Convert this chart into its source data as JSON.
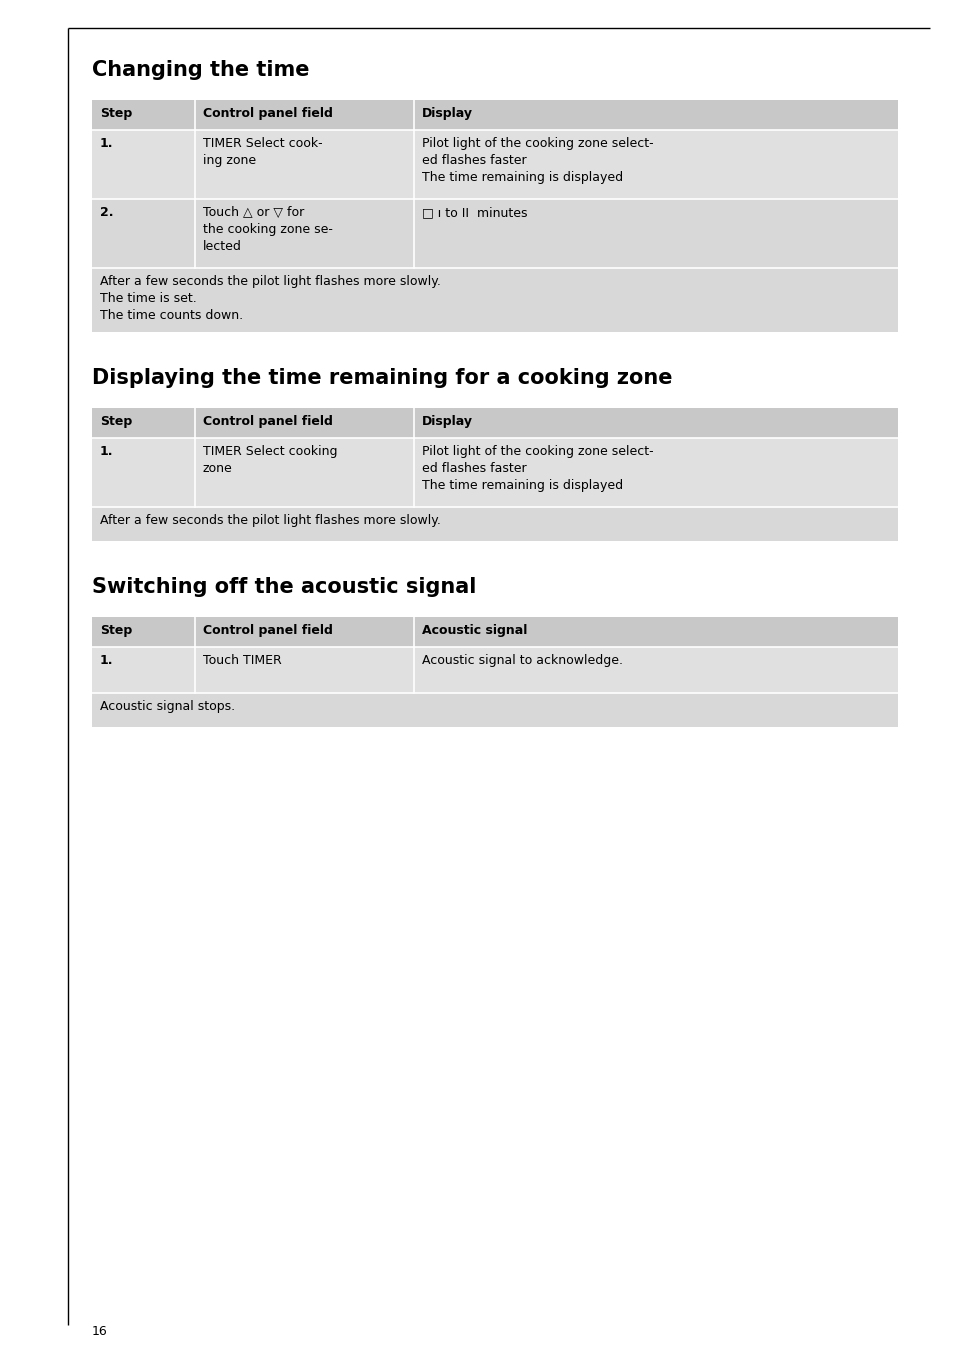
{
  "page_number": "16",
  "background_color": "#ffffff",
  "table_header_bg": "#c8c8c8",
  "table_row_bg_odd": "#e0e0e0",
  "table_row_bg_even": "#d8d8d8",
  "table_note_bg": "#d8d8d8",
  "sections": [
    {
      "title": "Changing the time",
      "headers": [
        "Step",
        "Control panel field",
        "Display"
      ],
      "rows": [
        {
          "step": "1.",
          "control": "TIMER Select cook-\ning zone",
          "display": "Pilot light of the cooking zone select-\ned flashes faster\nThe time remaining is displayed",
          "display_special": false
        },
        {
          "step": "2.",
          "control": "Touch △ or ▽ for\nthe cooking zone se-\nlected",
          "display": "0 1 to 99  minutes",
          "display_special": true
        }
      ],
      "note": "After a few seconds the pilot light flashes more slowly.\nThe time is set.\nThe time counts down."
    },
    {
      "title": "Displaying the time remaining for a cooking zone",
      "headers": [
        "Step",
        "Control panel field",
        "Display"
      ],
      "rows": [
        {
          "step": "1.",
          "control": "TIMER Select cooking\nzone",
          "display": "Pilot light of the cooking zone select-\ned flashes faster\nThe time remaining is displayed",
          "display_special": false
        }
      ],
      "note": "After a few seconds the pilot light flashes more slowly."
    },
    {
      "title": "Switching off the acoustic signal",
      "headers": [
        "Step",
        "Control panel field",
        "Acoustic signal"
      ],
      "rows": [
        {
          "step": "1.",
          "control": "Touch TIMER",
          "display": "Acoustic signal to acknowledge.",
          "display_special": false
        }
      ],
      "note": "Acoustic signal stops."
    }
  ]
}
